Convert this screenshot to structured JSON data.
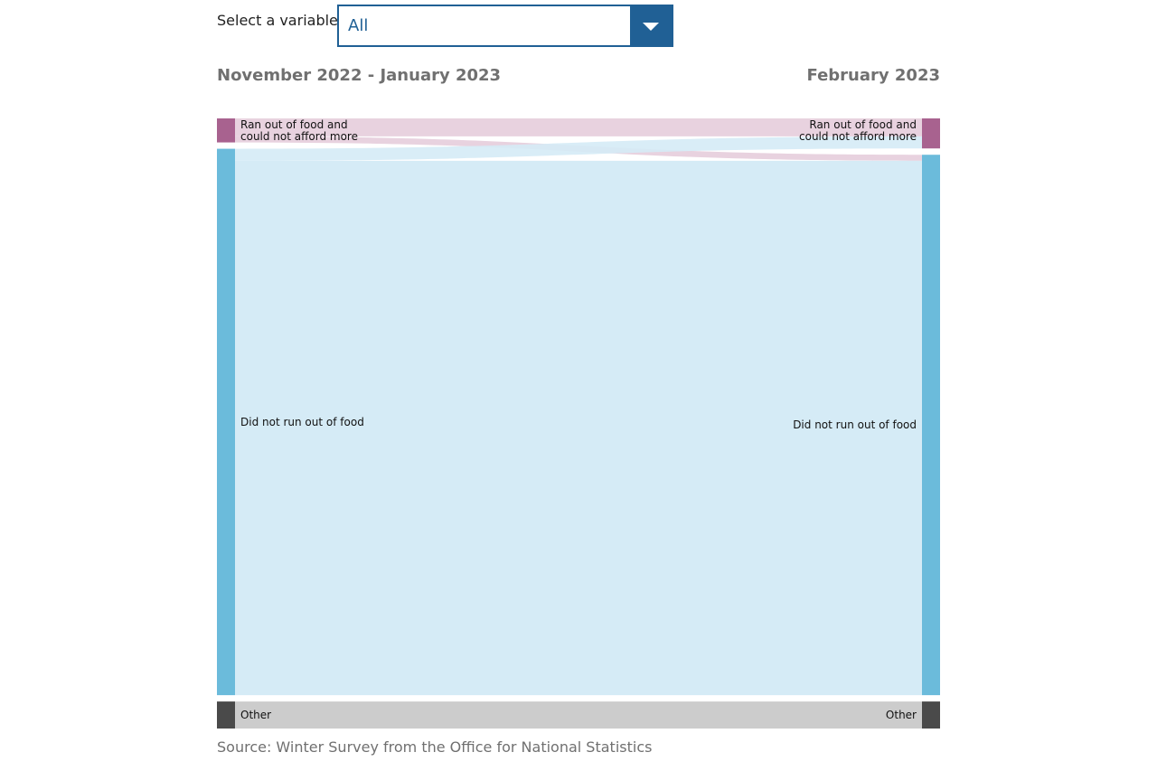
{
  "selector": {
    "label": "Select a variable:",
    "value": "All"
  },
  "periods": {
    "left": "November 2022 - January 2023",
    "right": "February 2023"
  },
  "source": "Source: Winter Survey from the Office for National Statistics",
  "colors": {
    "ran_out": "#a8628f",
    "ran_out_link": "#e8d2df",
    "did_not": "#6bbbdb",
    "did_not_link": "#d5ebf6",
    "other": "#4a4a4a",
    "other_link": "#cccccc",
    "accent": "#206095"
  },
  "chart_data": {
    "type": "sankey",
    "nodes_left": [
      {
        "id": "l_ran",
        "label_lines": [
          "Ran out of food and",
          "could not afford more"
        ],
        "value": 4,
        "color": "#a8628f"
      },
      {
        "id": "l_did",
        "label_lines": [
          "Did not run out of food"
        ],
        "value": 91,
        "color": "#6bbbdb"
      },
      {
        "id": "l_other",
        "label_lines": [
          "Other"
        ],
        "value": 4.5,
        "color": "#4a4a4a"
      }
    ],
    "nodes_right": [
      {
        "id": "r_ran",
        "label_lines": [
          "Ran out of food and",
          "could not afford more"
        ],
        "value": 5,
        "color": "#a8628f"
      },
      {
        "id": "r_did",
        "label_lines": [
          "Did not run out of food"
        ],
        "value": 90,
        "color": "#6bbbdb"
      },
      {
        "id": "r_other",
        "label_lines": [
          "Other"
        ],
        "value": 4.5,
        "color": "#4a4a4a"
      }
    ],
    "links": [
      {
        "source": "l_ran",
        "target": "r_ran",
        "value": 3
      },
      {
        "source": "l_ran",
        "target": "r_did",
        "value": 1
      },
      {
        "source": "l_did",
        "target": "r_ran",
        "value": 2
      },
      {
        "source": "l_did",
        "target": "r_did",
        "value": 89
      },
      {
        "source": "l_other",
        "target": "r_other",
        "value": 4.5
      }
    ]
  }
}
